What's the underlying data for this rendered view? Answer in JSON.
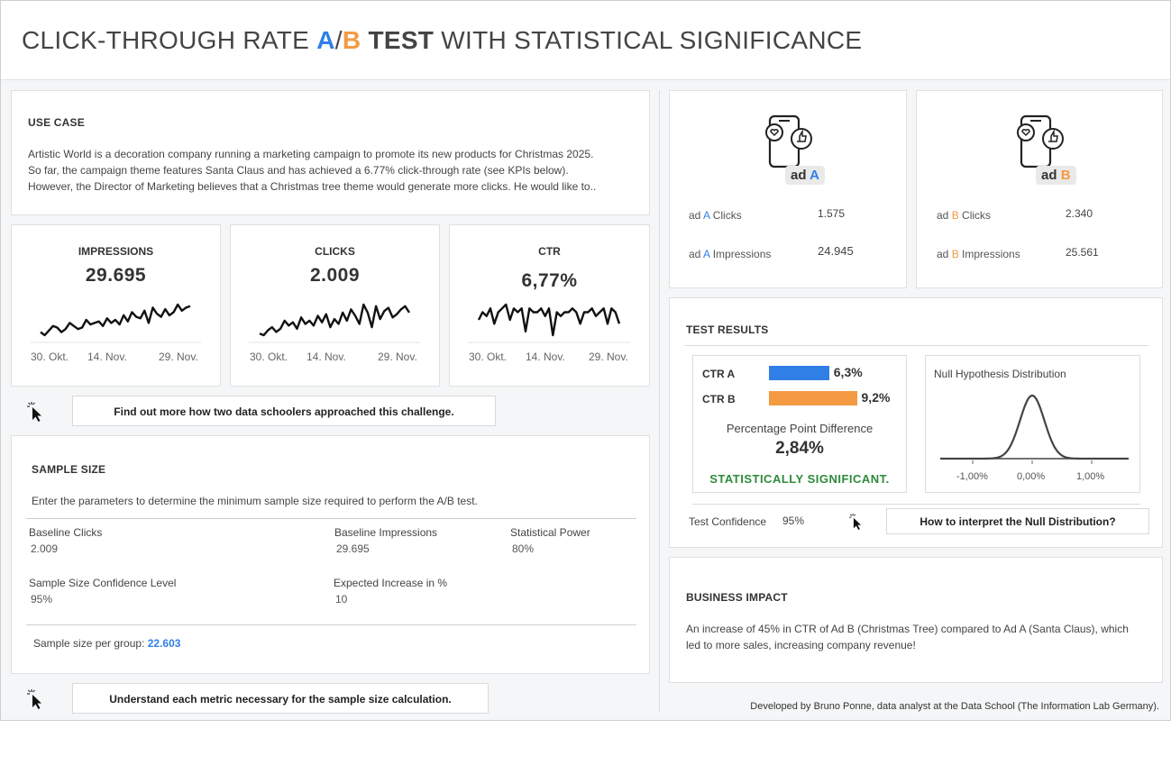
{
  "title": {
    "part1": "CLICK-THROUGH RATE ",
    "a": "A",
    "slash": "/",
    "b": "B",
    "test": " TEST",
    "part2": " WITH STATISTICAL SIGNIFICANCE"
  },
  "colors": {
    "ad_a": "#2f7fe6",
    "ad_b": "#f39a43",
    "significant": "#2e8b3a"
  },
  "use_case": {
    "heading": "USE CASE",
    "line1": "Artistic World is a decoration company running a marketing campaign to promote its new products for Christmas 2025.",
    "line2": "So far, the campaign theme features Santa Claus and has achieved a 6.77% click-through rate (see KPIs below).",
    "line3": "However, the Director of Marketing believes that a Christmas tree theme would generate more clicks. He would like to.."
  },
  "kpis": [
    {
      "title": "IMPRESSIONS",
      "value": "29.695",
      "ticks": [
        "30. Okt.",
        "14. Nov.",
        "29. Nov."
      ],
      "series": [
        10,
        8,
        11,
        14,
        13,
        10,
        12,
        16,
        14,
        12,
        13,
        18,
        15,
        16,
        17,
        14,
        19,
        16,
        18,
        15,
        21,
        17,
        23,
        20,
        19,
        24,
        16,
        26,
        22,
        20,
        25,
        21,
        23,
        28,
        24,
        26,
        27
      ]
    },
    {
      "title": "CLICKS",
      "value": "2.009",
      "ticks": [
        "30. Okt.",
        "14. Nov.",
        "29. Nov."
      ],
      "series": [
        9,
        8,
        11,
        13,
        10,
        12,
        17,
        14,
        16,
        12,
        19,
        15,
        17,
        14,
        20,
        16,
        21,
        13,
        18,
        15,
        22,
        17,
        24,
        20,
        15,
        27,
        22,
        13,
        26,
        18,
        23,
        25,
        19,
        21,
        24,
        26,
        22
      ]
    },
    {
      "title": "CTR",
      "value": "6,77%",
      "ticks": [
        "30. Okt.",
        "14. Nov.",
        "29. Nov."
      ],
      "series": [
        18,
        20,
        19,
        21,
        17,
        20,
        21,
        22,
        18,
        21,
        20,
        21,
        15,
        21,
        20,
        20,
        21,
        19,
        21,
        14,
        20,
        19,
        20,
        20,
        21,
        20,
        17,
        20,
        20,
        21,
        19,
        20,
        21,
        17,
        21,
        20,
        17
      ]
    }
  ],
  "links": {
    "data_schoolers": "Find out more how two data schoolers approached this challenge.",
    "sample_metric": "Understand each metric necessary for the sample size calculation.",
    "null_dist": "How to interpret the Null Distribution?"
  },
  "sample_size": {
    "heading": "SAMPLE SIZE",
    "intro": "Enter the parameters to determine the minimum sample size required to perform the A/B test.",
    "fields": {
      "baseline_clicks_label": "Baseline Clicks",
      "baseline_clicks": "2.009",
      "baseline_impr_label": "Baseline Impressions",
      "baseline_impr": "29.695",
      "power_label": "Statistical Power",
      "power": "80%",
      "conf_label": "Sample Size Confidence Level",
      "conf": "95%",
      "increase_label": "Expected Increase in %",
      "increase": "10"
    },
    "result_label": "Sample size per group: ",
    "result_value": "22.603"
  },
  "ad_a": {
    "prefix": "ad ",
    "letter": "A",
    "clicks_label": " Clicks",
    "clicks": "1.575",
    "impr_label": " Impressions",
    "impr": "24.945"
  },
  "ad_b": {
    "prefix": "ad ",
    "letter": "B",
    "clicks_label": " Clicks",
    "clicks": "2.340",
    "impr_label": " Impressions",
    "impr": "25.561"
  },
  "test_results": {
    "heading": "TEST RESULTS",
    "ctr_a_label": "CTR A",
    "ctr_a": "6,3%",
    "ctr_a_value": 6.3,
    "ctr_b_label": "CTR B",
    "ctr_b": "9,2%",
    "ctr_b_value": 9.2,
    "ppd_label": "Percentage Point Difference",
    "ppd": "2,84%",
    "verdict": "STATISTICALLY SIGNIFICANT.",
    "null_title": "Null Hypothesis Distribution",
    "null_ticks": [
      "-1,00%",
      "0,00%",
      "1,00%"
    ],
    "confidence_label": "Test Confidence",
    "confidence": "95%"
  },
  "business": {
    "heading": "BUSINESS IMPACT",
    "line1": "An increase of 45% in CTR of Ad B (Christmas Tree) compared to Ad A (Santa Claus), which",
    "line2": "led to more sales, increasing company revenue!"
  },
  "footer": "Developed by Bruno Ponne, data analyst at the Data School (The Information Lab Germany)."
}
